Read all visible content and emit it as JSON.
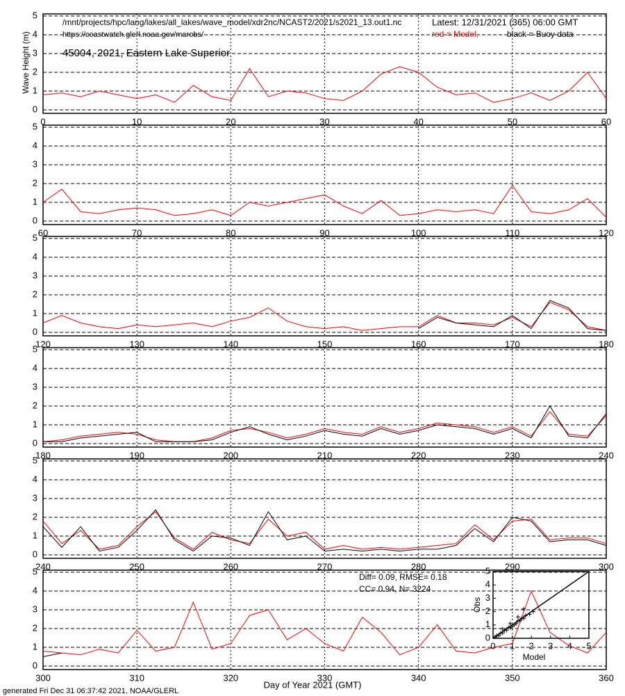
{
  "header": {
    "path": "/mnt/projects/hpc/lang/lakes/all_lakes/wave_model/xdr2nc/NCAST2/2021/s2021_13.out1.nc",
    "latest": "Latest: 12/31/2021 (365) 06:00 GMT",
    "url": "https://coastwatch.glerl.noaa.gov/marobs/",
    "footer": "generated Fri Dec 31 06:37:42 2021, NOAA/GLERL"
  },
  "chart_data": [
    {
      "type": "line",
      "title": "45004, 2021, Eastern Lake Superior",
      "y_label": "Wave Height (m)",
      "xlim": [
        0,
        60
      ],
      "xticks": [
        0,
        10,
        20,
        30,
        40,
        50,
        60
      ],
      "ylim": [
        0,
        5
      ],
      "yticks": [
        0,
        1,
        2,
        3,
        4,
        5
      ],
      "grid": true,
      "x": [
        0,
        2,
        4,
        6,
        8,
        10,
        12,
        14,
        16,
        18,
        20,
        22,
        24,
        26,
        28,
        30,
        32,
        34,
        36,
        38,
        40,
        42,
        44,
        46,
        48,
        50,
        52,
        54,
        56,
        58,
        60
      ],
      "series": [
        {
          "name": "red = Model,",
          "color": "#ff0000",
          "values": [
            0.8,
            0.9,
            0.7,
            1.0,
            0.8,
            0.6,
            0.8,
            0.4,
            1.3,
            0.7,
            0.5,
            2.2,
            0.7,
            1.0,
            0.9,
            0.6,
            0.5,
            1.0,
            1.9,
            2.3,
            2.0,
            1.2,
            0.8,
            0.9,
            0.4,
            0.6,
            0.9,
            0.5,
            1.0,
            2.0,
            0.6
          ]
        },
        {
          "name": "black = Buoy data",
          "color": "#000000",
          "values": [
            null,
            null,
            null,
            null,
            null,
            null,
            null,
            null,
            null,
            null,
            null,
            null,
            null,
            null,
            null,
            null,
            null,
            null,
            null,
            null,
            null,
            null,
            null,
            null,
            null,
            null,
            null,
            null,
            null,
            null,
            null
          ]
        }
      ]
    },
    {
      "type": "line",
      "xlim": [
        60,
        120
      ],
      "xticks": [
        60,
        70,
        80,
        90,
        100,
        110,
        120
      ],
      "ylim": [
        0,
        5
      ],
      "yticks": [
        0,
        1,
        2,
        3,
        4,
        5
      ],
      "grid": true,
      "x": [
        60,
        62,
        64,
        66,
        68,
        70,
        72,
        74,
        76,
        78,
        80,
        82,
        84,
        86,
        88,
        90,
        92,
        94,
        96,
        98,
        100,
        102,
        104,
        106,
        108,
        110,
        112,
        114,
        116,
        118,
        120
      ],
      "series": [
        {
          "color": "#ff0000",
          "values": [
            1.0,
            1.7,
            0.5,
            0.4,
            0.6,
            0.7,
            0.6,
            0.3,
            0.4,
            0.6,
            0.3,
            1.0,
            0.8,
            1.0,
            1.2,
            1.4,
            0.8,
            0.4,
            1.1,
            0.3,
            0.4,
            0.6,
            0.5,
            0.6,
            0.4,
            1.9,
            0.5,
            0.4,
            0.6,
            1.2,
            0.2
          ]
        }
      ]
    },
    {
      "type": "line",
      "xlim": [
        120,
        180
      ],
      "xticks": [
        120,
        130,
        140,
        150,
        160,
        170,
        180
      ],
      "ylim": [
        0,
        5
      ],
      "yticks": [
        0,
        1,
        2,
        3,
        4,
        5
      ],
      "grid": true,
      "x": [
        120,
        122,
        124,
        126,
        128,
        130,
        132,
        134,
        136,
        138,
        140,
        142,
        144,
        146,
        148,
        150,
        152,
        154,
        156,
        158,
        160,
        162,
        164,
        166,
        168,
        170,
        172,
        174,
        176,
        178,
        180
      ],
      "series": [
        {
          "color": "#ff0000",
          "values": [
            0.5,
            0.9,
            0.5,
            0.3,
            0.2,
            0.4,
            0.3,
            0.4,
            0.5,
            0.3,
            0.6,
            0.8,
            1.3,
            0.6,
            0.3,
            0.2,
            0.3,
            0.1,
            0.2,
            0.3,
            0.3,
            0.9,
            0.5,
            0.5,
            0.4,
            0.8,
            0.3,
            1.6,
            1.2,
            0.3,
            0.1
          ]
        },
        {
          "color": "#000000",
          "values": [
            null,
            null,
            null,
            null,
            null,
            null,
            null,
            null,
            null,
            null,
            null,
            null,
            null,
            null,
            null,
            null,
            null,
            null,
            null,
            null,
            0.2,
            0.8,
            0.5,
            0.4,
            0.3,
            0.9,
            0.2,
            1.7,
            1.3,
            0.2,
            0.1
          ]
        }
      ]
    },
    {
      "type": "line",
      "xlim": [
        180,
        240
      ],
      "xticks": [
        180,
        190,
        200,
        210,
        220,
        230,
        240
      ],
      "ylim": [
        0,
        5
      ],
      "yticks": [
        0,
        1,
        2,
        3,
        4,
        5
      ],
      "grid": true,
      "x": [
        180,
        182,
        184,
        186,
        188,
        190,
        192,
        194,
        196,
        198,
        200,
        202,
        204,
        206,
        208,
        210,
        212,
        214,
        216,
        218,
        220,
        222,
        224,
        226,
        228,
        230,
        232,
        234,
        236,
        238,
        240
      ],
      "series": [
        {
          "color": "#ff0000",
          "values": [
            0.1,
            0.2,
            0.4,
            0.5,
            0.6,
            0.5,
            0.2,
            0.1,
            0.1,
            0.3,
            0.7,
            0.8,
            0.6,
            0.3,
            0.5,
            0.8,
            0.6,
            0.5,
            0.9,
            0.6,
            0.8,
            1.1,
            1.0,
            0.9,
            0.6,
            0.9,
            0.4,
            1.7,
            0.5,
            0.4,
            1.5
          ]
        },
        {
          "color": "#000000",
          "values": [
            0.1,
            0.1,
            0.3,
            0.4,
            0.5,
            0.6,
            0.1,
            0.1,
            0.1,
            0.2,
            0.6,
            0.9,
            0.5,
            0.2,
            0.4,
            0.7,
            0.5,
            0.4,
            0.8,
            0.5,
            0.7,
            1.0,
            0.9,
            0.8,
            0.5,
            0.8,
            0.3,
            2.0,
            0.4,
            0.3,
            1.6
          ]
        }
      ]
    },
    {
      "type": "line",
      "xlim": [
        240,
        300
      ],
      "xticks": [
        240,
        250,
        260,
        270,
        280,
        290,
        300
      ],
      "ylim": [
        0,
        5
      ],
      "yticks": [
        0,
        1,
        2,
        3,
        4,
        5
      ],
      "grid": true,
      "x": [
        240,
        242,
        244,
        246,
        248,
        250,
        252,
        254,
        256,
        258,
        260,
        262,
        264,
        266,
        268,
        270,
        272,
        274,
        276,
        278,
        280,
        282,
        284,
        286,
        288,
        290,
        292,
        294,
        296,
        298,
        300
      ],
      "series": [
        {
          "color": "#ff0000",
          "values": [
            1.8,
            0.6,
            1.3,
            0.3,
            0.5,
            1.5,
            2.3,
            0.9,
            0.3,
            1.2,
            0.8,
            0.6,
            1.9,
            1.0,
            1.2,
            0.3,
            0.5,
            0.3,
            0.4,
            0.3,
            0.4,
            0.5,
            0.6,
            1.6,
            0.8,
            1.8,
            1.9,
            0.8,
            0.9,
            0.9,
            0.6
          ]
        },
        {
          "color": "#000000",
          "values": [
            1.5,
            0.4,
            1.5,
            0.2,
            0.4,
            1.3,
            2.4,
            0.8,
            0.2,
            1.0,
            0.9,
            0.5,
            2.3,
            0.8,
            1.0,
            0.2,
            0.3,
            0.2,
            0.3,
            0.2,
            0.3,
            0.3,
            0.5,
            1.4,
            0.7,
            2.0,
            1.8,
            0.7,
            0.8,
            0.8,
            0.5
          ]
        }
      ]
    },
    {
      "type": "line",
      "x_label": "Day of Year 2021 (GMT)",
      "xlim": [
        300,
        360
      ],
      "xticks": [
        300,
        310,
        320,
        330,
        340,
        350,
        360
      ],
      "ylim": [
        0,
        5
      ],
      "yticks": [
        0,
        1,
        2,
        3,
        4,
        5
      ],
      "grid": true,
      "x": [
        300,
        302,
        304,
        306,
        308,
        310,
        312,
        314,
        316,
        318,
        320,
        322,
        324,
        326,
        328,
        330,
        332,
        334,
        336,
        338,
        340,
        342,
        344,
        346,
        348,
        350,
        352,
        354,
        356,
        358,
        360
      ],
      "series": [
        {
          "color": "#ff0000",
          "values": [
            0.8,
            0.7,
            0.6,
            0.9,
            0.7,
            1.9,
            0.8,
            1.0,
            3.4,
            0.9,
            1.2,
            2.7,
            3.0,
            1.4,
            2.0,
            1.2,
            0.8,
            2.6,
            1.8,
            0.6,
            1.0,
            2.2,
            0.8,
            0.7,
            1.0,
            1.2,
            4.0,
            1.8,
            1.1,
            0.7,
            1.8
          ]
        },
        {
          "color": "#000000",
          "values": [
            0.5,
            0.7,
            null,
            null,
            null,
            null,
            null,
            null,
            null,
            null,
            null,
            null,
            null,
            null,
            null,
            null,
            null,
            null,
            null,
            null,
            null,
            null,
            null,
            null,
            null,
            null,
            null,
            null,
            null,
            null,
            null
          ]
        }
      ]
    },
    {
      "type": "scatter",
      "x_label": "Model",
      "y_label": "Obs",
      "annotations": [
        "Diff= 0.09,   RMSE= 0.18",
        "CC= 0.94,   N= 3224"
      ],
      "xlim": [
        0,
        5
      ],
      "xticks": [
        0,
        1,
        2,
        3,
        4,
        5
      ],
      "ylim": [
        0,
        5
      ],
      "yticks": [
        0,
        1,
        2,
        3,
        4,
        5
      ],
      "series": [
        {
          "color": "#000000",
          "x": [
            0.1,
            0.2,
            0.3,
            0.4,
            0.5,
            0.6,
            0.7,
            0.8,
            0.9,
            1.0,
            1.1,
            1.2,
            1.3,
            1.4,
            1.5,
            1.6,
            1.7,
            1.9,
            2.1,
            0.5,
            0.9,
            1.3,
            1.6
          ],
          "values": [
            0.1,
            0.2,
            0.2,
            0.4,
            0.4,
            0.6,
            0.6,
            0.8,
            0.8,
            0.9,
            1.0,
            1.1,
            1.3,
            1.3,
            1.5,
            1.5,
            1.7,
            1.8,
            2.0,
            0.7,
            1.1,
            1.6,
            2.2
          ]
        }
      ]
    }
  ]
}
